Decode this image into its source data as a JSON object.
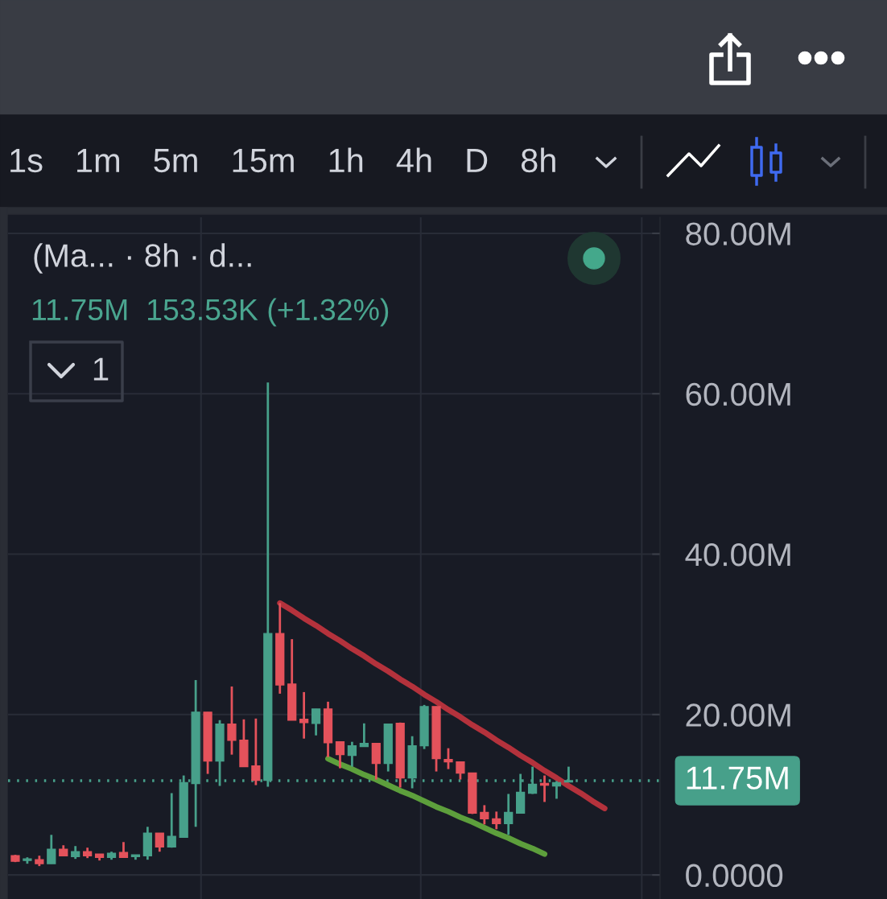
{
  "chart_data": {
    "type": "candlestick",
    "subtitle": "(Ma... · 8h · d...",
    "categories": [
      null,
      null,
      null,
      null,
      null,
      null,
      null,
      null,
      null,
      null,
      null,
      null,
      null,
      null,
      null,
      null,
      null,
      null,
      null,
      null,
      null,
      null,
      null,
      null,
      null,
      null,
      null,
      null,
      null,
      null,
      null,
      null,
      null,
      null,
      null,
      null,
      null,
      null,
      null,
      null,
      null,
      null,
      null,
      null,
      null,
      null,
      null,
      null,
      null,
      null
    ],
    "ohlc": [
      [
        2.4,
        2.5,
        1.6,
        1.7
      ],
      [
        1.8,
        2.2,
        1.4,
        2.0
      ],
      [
        1.9,
        2.4,
        1.1,
        1.4
      ],
      [
        1.4,
        5.0,
        1.4,
        3.2
      ],
      [
        3.2,
        3.7,
        2.4,
        2.4
      ],
      [
        2.3,
        3.6,
        2.0,
        2.9
      ],
      [
        2.9,
        3.4,
        2.1,
        2.4
      ],
      [
        2.6,
        2.6,
        1.8,
        2.2
      ],
      [
        2.2,
        2.9,
        1.9,
        2.7
      ],
      [
        2.8,
        4.1,
        2.2,
        2.2
      ],
      [
        2.3,
        2.5,
        1.9,
        2.5
      ],
      [
        2.4,
        6.0,
        1.9,
        5.2
      ],
      [
        5.2,
        5.2,
        2.9,
        3.5
      ],
      [
        3.5,
        10.2,
        3.4,
        4.8
      ],
      [
        4.7,
        12.4,
        4.7,
        11.5
      ],
      [
        11.4,
        24.3,
        6.0,
        20.3
      ],
      [
        20.3,
        20.3,
        12.6,
        14.2
      ],
      [
        14.2,
        19.3,
        11.1,
        18.8
      ],
      [
        18.8,
        23.5,
        15.0,
        16.8
      ],
      [
        16.8,
        19.4,
        13.5,
        13.5
      ],
      [
        13.6,
        19.5,
        11.2,
        11.8
      ],
      [
        11.8,
        61.4,
        11.0,
        30.1
      ],
      [
        30.1,
        33.9,
        22.6,
        23.7
      ],
      [
        23.8,
        29.4,
        19.3,
        19.3
      ],
      [
        19.4,
        22.8,
        17.0,
        19.0
      ],
      [
        18.9,
        20.7,
        17.4,
        20.7
      ],
      [
        20.7,
        21.6,
        14.7,
        16.5
      ],
      [
        16.6,
        16.6,
        13.3,
        15.0
      ],
      [
        14.9,
        16.6,
        13.5,
        16.1
      ],
      [
        16.0,
        18.9,
        16.0,
        16.4
      ],
      [
        16.4,
        16.4,
        11.9,
        13.9
      ],
      [
        13.9,
        18.8,
        12.9,
        18.8
      ],
      [
        18.9,
        19.0,
        10.9,
        12.1
      ],
      [
        12.1,
        17.3,
        10.8,
        16.1
      ],
      [
        16.1,
        21.2,
        15.7,
        21.0
      ],
      [
        21.0,
        21.0,
        12.9,
        14.5
      ],
      [
        14.4,
        15.8,
        13.2,
        14.1
      ],
      [
        14.1,
        14.1,
        11.9,
        12.7
      ],
      [
        12.7,
        12.7,
        7.6,
        7.7
      ],
      [
        7.8,
        8.7,
        6.3,
        7.0
      ],
      [
        7.0,
        7.9,
        5.7,
        6.4
      ],
      [
        6.4,
        10.1,
        5.0,
        7.8
      ],
      [
        7.7,
        12.6,
        7.7,
        10.3
      ],
      [
        10.2,
        13.5,
        10.1,
        11.3
      ],
      [
        11.4,
        12.4,
        9.1,
        11.2
      ],
      [
        11.1,
        11.7,
        9.5,
        11.5
      ],
      [
        11.6,
        13.5,
        11.6,
        11.75
      ],
      null,
      null,
      null
    ],
    "colors": [
      "#e4525b",
      "#47a08a",
      "#e4525b",
      "#47a08a",
      "#e4525b",
      "#47a08a",
      "#e4525b",
      "#e4525b",
      "#47a08a",
      "#e4525b",
      "#47a08a",
      "#47a08a",
      "#e4525b",
      "#47a08a",
      "#47a08a",
      "#47a08a",
      "#e4525b",
      "#47a08a",
      "#e4525b",
      "#e4525b",
      "#e4525b",
      "#47a08a",
      "#e4525b",
      "#e4525b",
      "#e4525b",
      "#47a08a",
      "#e4525b",
      "#e4525b",
      "#47a08a",
      "#47a08a",
      "#e4525b",
      "#47a08a",
      "#e4525b",
      "#47a08a",
      "#47a08a",
      "#e4525b",
      "#e4525b",
      "#e4525b",
      "#e4525b",
      "#e4525b",
      "#e4525b",
      "#47a08a",
      "#47a08a",
      "#47a08a",
      "#e4525b",
      "#47a08a",
      "#47a08a",
      null,
      null,
      null
    ],
    "series": [
      {
        "type": "line",
        "color": "#b4323c",
        "values": [
          null,
          null,
          null,
          null,
          null,
          null,
          null,
          null,
          null,
          null,
          null,
          null,
          null,
          null,
          null,
          null,
          null,
          null,
          null,
          null,
          null,
          null,
          33.9,
          33.0,
          32.0,
          31.1,
          30.1,
          29.2,
          28.2,
          27.3,
          26.3,
          25.4,
          24.4,
          23.5,
          22.5,
          21.6,
          20.6,
          19.7,
          18.7,
          17.8,
          16.8,
          15.9,
          14.9,
          14.0,
          13.0,
          12.1,
          11.1,
          10.2,
          9.2,
          8.3
        ]
      },
      {
        "type": "line",
        "color": "#5d9f3c",
        "values": [
          null,
          null,
          null,
          null,
          null,
          null,
          null,
          null,
          null,
          null,
          null,
          null,
          null,
          null,
          null,
          null,
          null,
          null,
          null,
          null,
          null,
          null,
          null,
          null,
          null,
          null,
          14.5,
          13.8,
          13.2,
          12.5,
          11.9,
          11.2,
          10.5,
          9.9,
          9.2,
          8.5,
          7.9,
          7.2,
          6.6,
          5.9,
          5.2,
          4.6,
          3.9,
          3.3,
          2.6,
          null,
          null,
          null,
          null,
          null
        ]
      }
    ],
    "ylim": [
      -3,
      82
    ],
    "yticks": [
      {
        "value": 0,
        "label": "0.0000"
      },
      {
        "value": 20,
        "label": "20.00M"
      },
      {
        "value": 40,
        "label": "40.00M"
      },
      {
        "value": 60,
        "label": "60.00M"
      },
      {
        "value": 80,
        "label": "80.00M"
      }
    ],
    "ref_lines": [
      {
        "axis": "y",
        "value": 11.75,
        "label": "11.75M",
        "color": "#47a08a",
        "line_style": "dotted"
      }
    ],
    "grid": true,
    "tick_labels": "y",
    "annotations": [
      "1s",
      "1m",
      "5m",
      "15m",
      "1h",
      "4h",
      "D",
      "8h",
      "11.75M  153.53K (+1.32%)",
      "1"
    ]
  }
}
